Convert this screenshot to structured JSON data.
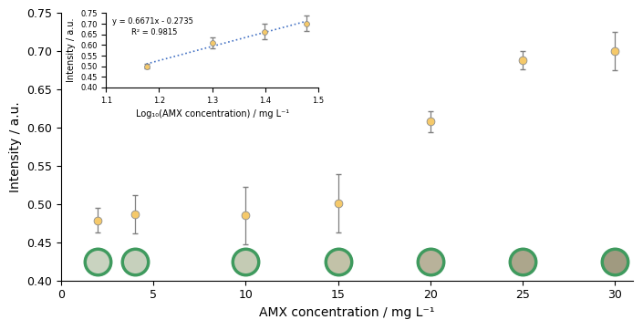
{
  "chart_data": [
    {
      "type": "scatter",
      "x_label": "AMX concentration / mg L⁻¹",
      "y_label": "Intensity / a.u.",
      "x": [
        2,
        4,
        10,
        15,
        20,
        25,
        30
      ],
      "values": [
        0.479,
        0.487,
        0.485,
        0.501,
        0.608,
        0.689,
        0.7
      ],
      "errors": [
        0.016,
        0.025,
        0.038,
        0.038,
        0.014,
        0.012,
        0.025
      ],
      "color": "#f5c96a",
      "marker": "o",
      "xlim": [
        0,
        31
      ],
      "xticks": [
        0,
        5,
        10,
        15,
        20,
        25,
        30
      ],
      "ylim": [
        0.4,
        0.75
      ],
      "yticks": [
        {
          "value": 0.4,
          "label": "0.40"
        },
        {
          "value": 0.45,
          "label": "0.45"
        },
        {
          "value": 0.5,
          "label": "0.50"
        },
        {
          "value": 0.55,
          "label": "0.55"
        },
        {
          "value": 0.6,
          "label": "0.60"
        },
        {
          "value": 0.65,
          "label": "0.65"
        },
        {
          "value": 0.7,
          "label": "0.70"
        },
        {
          "value": 0.75,
          "label": "0.75"
        }
      ]
    },
    {
      "type": "scatter",
      "x_label": "Log₁₀(AMX concentration) / mg L⁻¹",
      "y_label": "Intensity / a.u.",
      "x": [
        1.176,
        1.301,
        1.398,
        1.477
      ],
      "values": [
        0.5,
        0.609,
        0.663,
        0.702
      ],
      "errors": [
        0.012,
        0.025,
        0.037,
        0.037
      ],
      "color": "#f5c96a",
      "marker": "o",
      "fit": {
        "slope": 0.6671,
        "intercept": -0.2735,
        "color": "#4472c4",
        "line_style": "dotted"
      },
      "annotations": [
        "y = 0.6671x - 0.2735",
        "R² = 0.9815"
      ],
      "xlim": [
        1.1,
        1.5
      ],
      "xticks": [
        1.1,
        1.2,
        1.3,
        1.4,
        1.5
      ],
      "ylim": [
        0.4,
        0.75
      ],
      "yticks": [
        {
          "value": 0.4,
          "label": "0.40"
        },
        {
          "value": 0.45,
          "label": "0.45"
        },
        {
          "value": 0.5,
          "label": "0.50"
        },
        {
          "value": 0.55,
          "label": "0.55"
        },
        {
          "value": 0.6,
          "label": "0.60"
        },
        {
          "value": 0.65,
          "label": "0.65"
        },
        {
          "value": 0.7,
          "label": "0.70"
        },
        {
          "value": 0.75,
          "label": "0.75"
        }
      ]
    }
  ]
}
